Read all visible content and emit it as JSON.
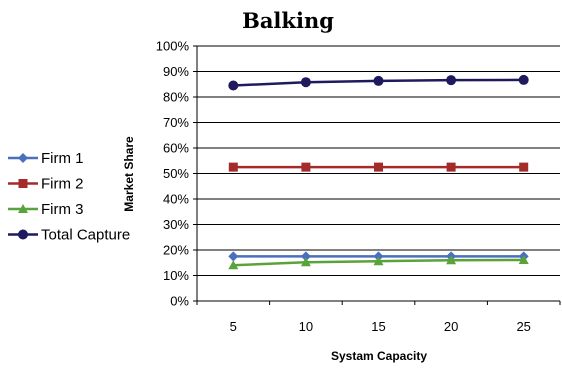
{
  "chart_data": {
    "type": "line",
    "title": "Balking",
    "xlabel": "Systam Capacity",
    "ylabel": "Market Share",
    "x": [
      5,
      10,
      15,
      20,
      25
    ],
    "xticks": [
      "5",
      "10",
      "15",
      "20",
      "25"
    ],
    "ylim": [
      0,
      100
    ],
    "yticks": [
      "0%",
      "10%",
      "20%",
      "30%",
      "40%",
      "50%",
      "60%",
      "70%",
      "80%",
      "90%",
      "100%"
    ],
    "grid": "horizontal",
    "legend_position": "left",
    "series": [
      {
        "name": "Firm 1",
        "values": [
          17.5,
          17.5,
          17.5,
          17.5,
          17.5
        ],
        "color": "#4a6fbe",
        "marker": "diamond"
      },
      {
        "name": "Firm 2",
        "values": [
          52.5,
          52.5,
          52.5,
          52.5,
          52.5
        ],
        "color": "#a52a2a",
        "marker": "square"
      },
      {
        "name": "Firm 3",
        "values": [
          14.0,
          15.2,
          15.6,
          16.0,
          16.1
        ],
        "color": "#58a33a",
        "marker": "triangle"
      },
      {
        "name": "Total Capture",
        "values": [
          84.5,
          85.8,
          86.3,
          86.6,
          86.7
        ],
        "color": "#1f1a5e",
        "marker": "circle"
      }
    ]
  }
}
